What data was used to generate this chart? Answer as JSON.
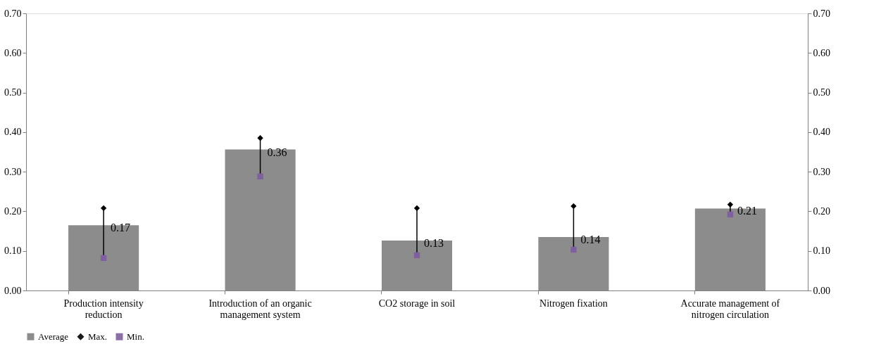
{
  "chart_data": {
    "type": "bar",
    "categories": [
      "Production intensity\nreduction",
      "Introduction of an organic\nmanagement system",
      "CO2 storage in soil",
      "Nitrogen fixation",
      "Accurate management of\nnitrogen circulation"
    ],
    "series": [
      {
        "name": "Average",
        "color": "#808080",
        "values": [
          0.165,
          0.356,
          0.126,
          0.135,
          0.207
        ],
        "value_labels": [
          "0.17",
          "0.36",
          "0.13",
          "0.14",
          "0.21"
        ]
      },
      {
        "name": "Max.",
        "type": "scatter",
        "marker": "diamond",
        "color": "#000000",
        "values": [
          0.208,
          0.385,
          0.208,
          0.213,
          0.217
        ]
      },
      {
        "name": "Min.",
        "type": "scatter",
        "marker": "square",
        "color": "#7f5fa0",
        "values": [
          0.082,
          0.288,
          0.089,
          0.103,
          0.192
        ]
      }
    ],
    "ylim": [
      0,
      0.7
    ],
    "yticks": [
      {
        "value": 0,
        "label": "0.00"
      },
      {
        "value": 0.1,
        "label": "0.10"
      },
      {
        "value": 0.2,
        "label": "0.20"
      },
      {
        "value": 0.3,
        "label": "0.30"
      },
      {
        "value": 0.4,
        "label": "0.40"
      },
      {
        "value": 0.5,
        "label": "0.50"
      },
      {
        "value": 0.6,
        "label": "0.60"
      },
      {
        "value": 0.7,
        "label": "0.70"
      }
    ],
    "y2lim": [
      0,
      0.7
    ],
    "y2ticks": [
      {
        "value": 0,
        "label": "0.00"
      },
      {
        "value": 0.1,
        "label": "0.10"
      },
      {
        "value": 0.2,
        "label": "0.20"
      },
      {
        "value": 0.3,
        "label": "0.30"
      },
      {
        "value": 0.4,
        "label": "0.40"
      },
      {
        "value": 0.5,
        "label": "0.50"
      },
      {
        "value": 0.6,
        "label": "0.60"
      },
      {
        "value": 0.7,
        "label": "0.70"
      }
    ],
    "grid": false,
    "legend": "bottom"
  }
}
